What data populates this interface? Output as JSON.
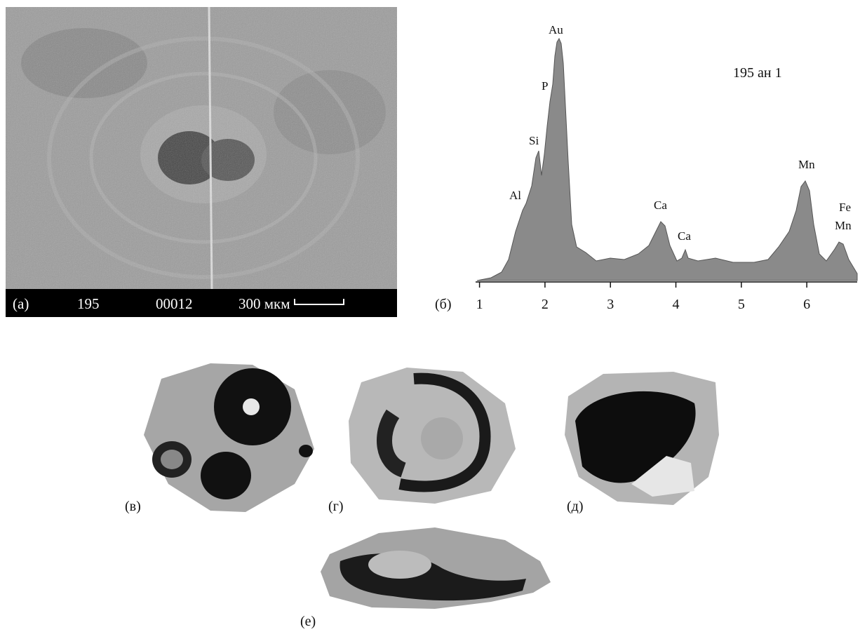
{
  "panel_a": {
    "label": "(a)",
    "sample": "195",
    "frame": "00012",
    "scale": "300 мкм"
  },
  "panel_b": {
    "label": "(б)",
    "title": "195 ан 1",
    "peaks": [
      "Au",
      "P",
      "Si",
      "Al",
      "Ca",
      "Ca",
      "Mn",
      "Fe",
      "Mn"
    ],
    "xlim": [
      0.94,
      6.77
    ],
    "xticks": [
      1,
      2,
      3,
      4,
      5,
      6
    ]
  },
  "panels": [
    "(в)",
    "(г)",
    "(д)",
    "(е)"
  ]
}
